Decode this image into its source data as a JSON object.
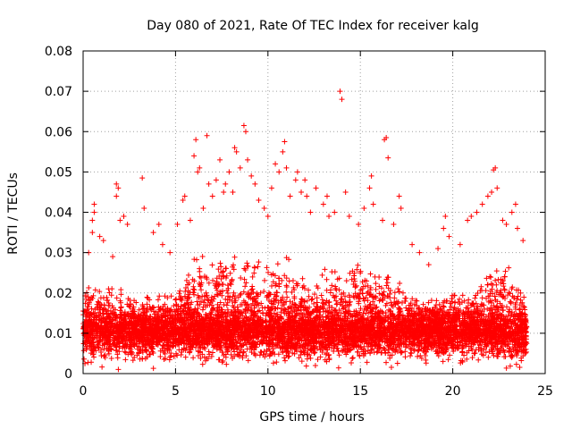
{
  "chart_data": {
    "type": "scatter",
    "title": "Day 080 of 2021, Rate Of TEC Index for receiver kalg",
    "xlabel": "GPS time / hours",
    "ylabel": "ROTI / TECUs",
    "xlim": [
      0,
      25
    ],
    "ylim": [
      0,
      0.08
    ],
    "xticks": [
      "0",
      "5",
      "10",
      "15",
      "20",
      "25"
    ],
    "yticks": [
      "0",
      "0.01",
      "0.02",
      "0.03",
      "0.04",
      "0.05",
      "0.06",
      "0.07",
      "0.08"
    ],
    "grid": true,
    "marker": "+",
    "color": "#ff0000",
    "series": [
      {
        "name": "ROTI",
        "x_range": [
          0,
          24
        ],
        "points": [
          [
            0.1,
            0.0025
          ],
          [
            0.2,
            0.012
          ],
          [
            0.3,
            0.03
          ],
          [
            0.5,
            0.038
          ],
          [
            0.5,
            0.035
          ],
          [
            0.6,
            0.04
          ],
          [
            0.6,
            0.042
          ],
          [
            0.9,
            0.034
          ],
          [
            1.1,
            0.033
          ],
          [
            1.6,
            0.029
          ],
          [
            1.8,
            0.047
          ],
          [
            1.8,
            0.044
          ],
          [
            1.9,
            0.046
          ],
          [
            2.0,
            0.038
          ],
          [
            2.2,
            0.039
          ],
          [
            2.4,
            0.037
          ],
          [
            3.2,
            0.0485
          ],
          [
            3.3,
            0.041
          ],
          [
            3.8,
            0.035
          ],
          [
            4.1,
            0.037
          ],
          [
            4.3,
            0.032
          ],
          [
            4.7,
            0.03
          ],
          [
            5.1,
            0.037
          ],
          [
            5.4,
            0.043
          ],
          [
            5.5,
            0.044
          ],
          [
            5.8,
            0.038
          ],
          [
            6.0,
            0.054
          ],
          [
            6.1,
            0.058
          ],
          [
            6.2,
            0.05
          ],
          [
            6.3,
            0.051
          ],
          [
            6.5,
            0.041
          ],
          [
            6.7,
            0.059
          ],
          [
            6.8,
            0.047
          ],
          [
            7.0,
            0.044
          ],
          [
            7.2,
            0.048
          ],
          [
            7.4,
            0.053
          ],
          [
            7.6,
            0.045
          ],
          [
            7.7,
            0.047
          ],
          [
            7.9,
            0.05
          ],
          [
            8.1,
            0.045
          ],
          [
            8.2,
            0.056
          ],
          [
            8.3,
            0.055
          ],
          [
            8.5,
            0.051
          ],
          [
            8.7,
            0.0615
          ],
          [
            8.8,
            0.06
          ],
          [
            8.9,
            0.053
          ],
          [
            9.1,
            0.049
          ],
          [
            9.3,
            0.047
          ],
          [
            9.5,
            0.043
          ],
          [
            9.8,
            0.041
          ],
          [
            10.0,
            0.039
          ],
          [
            10.2,
            0.046
          ],
          [
            10.4,
            0.052
          ],
          [
            10.6,
            0.05
          ],
          [
            10.8,
            0.055
          ],
          [
            10.9,
            0.0575
          ],
          [
            11.0,
            0.051
          ],
          [
            11.2,
            0.044
          ],
          [
            11.5,
            0.048
          ],
          [
            11.6,
            0.05
          ],
          [
            11.8,
            0.045
          ],
          [
            12.0,
            0.048
          ],
          [
            12.1,
            0.044
          ],
          [
            12.3,
            0.04
          ],
          [
            12.6,
            0.046
          ],
          [
            13.0,
            0.042
          ],
          [
            13.2,
            0.044
          ],
          [
            13.3,
            0.039
          ],
          [
            13.6,
            0.04
          ],
          [
            13.9,
            0.07
          ],
          [
            14.0,
            0.068
          ],
          [
            14.2,
            0.045
          ],
          [
            14.4,
            0.039
          ],
          [
            14.9,
            0.037
          ],
          [
            15.2,
            0.041
          ],
          [
            15.5,
            0.046
          ],
          [
            15.6,
            0.049
          ],
          [
            15.7,
            0.042
          ],
          [
            16.2,
            0.038
          ],
          [
            16.3,
            0.058
          ],
          [
            16.4,
            0.0585
          ],
          [
            16.5,
            0.0535
          ],
          [
            16.8,
            0.037
          ],
          [
            17.1,
            0.044
          ],
          [
            17.2,
            0.041
          ],
          [
            17.8,
            0.032
          ],
          [
            18.2,
            0.03
          ],
          [
            18.7,
            0.027
          ],
          [
            19.2,
            0.031
          ],
          [
            19.5,
            0.036
          ],
          [
            19.6,
            0.039
          ],
          [
            19.8,
            0.034
          ],
          [
            20.4,
            0.032
          ],
          [
            20.8,
            0.038
          ],
          [
            21.0,
            0.039
          ],
          [
            21.3,
            0.04
          ],
          [
            21.6,
            0.042
          ],
          [
            21.9,
            0.044
          ],
          [
            22.1,
            0.045
          ],
          [
            22.2,
            0.0505
          ],
          [
            22.3,
            0.051
          ],
          [
            22.4,
            0.046
          ],
          [
            22.7,
            0.038
          ],
          [
            22.9,
            0.037
          ],
          [
            23.2,
            0.04
          ],
          [
            23.4,
            0.042
          ],
          [
            23.5,
            0.036
          ],
          [
            23.8,
            0.033
          ]
        ],
        "dense_band": {
          "x_range": [
            0,
            24
          ],
          "baseline": 0.01,
          "baseline_spread": 0.006,
          "min": 0.001,
          "activity_profile": [
            [
              0,
              0.02
            ],
            [
              1,
              0.022
            ],
            [
              2,
              0.022
            ],
            [
              3,
              0.018
            ],
            [
              4,
              0.02
            ],
            [
              5,
              0.02
            ],
            [
              6,
              0.028
            ],
            [
              7,
              0.028
            ],
            [
              8,
              0.03
            ],
            [
              9,
              0.028
            ],
            [
              10,
              0.026
            ],
            [
              11,
              0.028
            ],
            [
              12,
              0.024
            ],
            [
              13,
              0.026
            ],
            [
              14,
              0.026
            ],
            [
              15,
              0.028
            ],
            [
              16,
              0.026
            ],
            [
              17,
              0.024
            ],
            [
              18,
              0.018
            ],
            [
              19,
              0.018
            ],
            [
              20,
              0.02
            ],
            [
              21,
              0.02
            ],
            [
              22,
              0.026
            ],
            [
              23,
              0.026
            ],
            [
              24,
              0.018
            ]
          ]
        }
      }
    ]
  }
}
